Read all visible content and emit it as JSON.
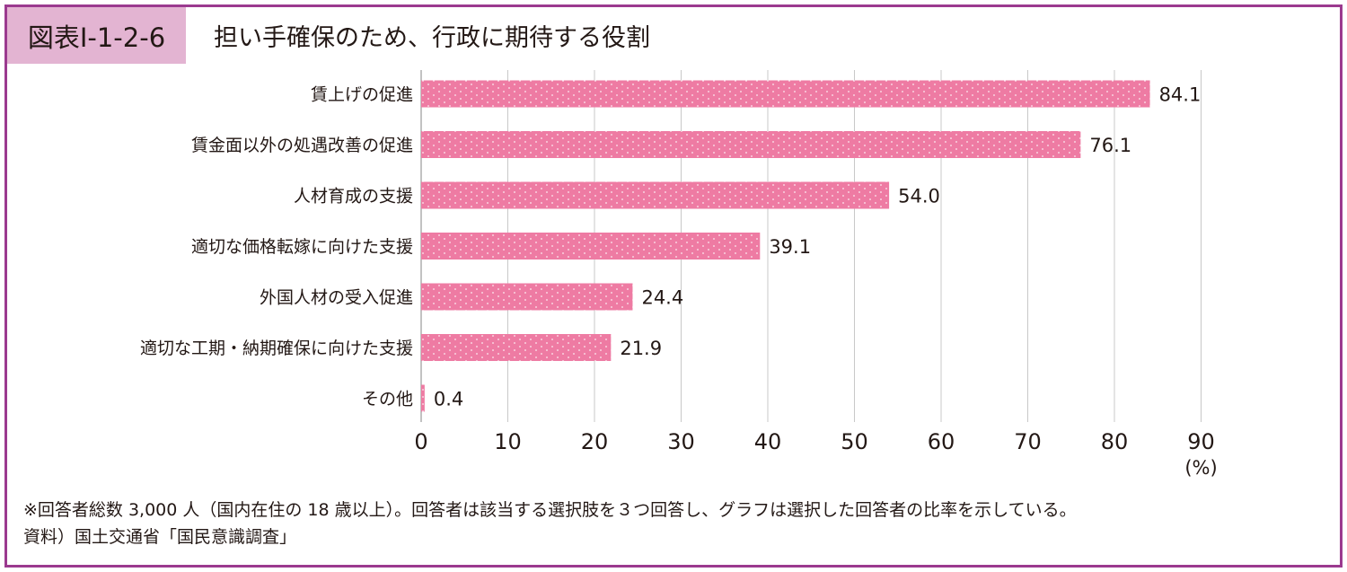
{
  "figure": {
    "badge": "図表Ⅰ-1-2-6",
    "title": "担い手確保のため、行政に期待する役割",
    "note": "※回答者総数 3,000 人（国内在住の 18 歳以上）。回答者は該当する選択肢を３つ回答し、グラフは選択した回答者の比率を示している。",
    "source": "資料）国土交通省「国民意識調査」"
  },
  "colors": {
    "border": "#9b3a8f",
    "badge": "#e3b4d2",
    "bar": "#ee7ba3",
    "grid": "#c8c8c8"
  },
  "chart_data": {
    "type": "bar",
    "orientation": "horizontal",
    "categories": [
      "賃上げの促進",
      "賃金面以外の処遇改善の促進",
      "人材育成の支援",
      "適切な価格転嫁に向けた支援",
      "外国人材の受入促進",
      "適切な工期・納期確保に向けた支援",
      "その他"
    ],
    "values": [
      84.1,
      76.1,
      54.0,
      39.1,
      24.4,
      21.9,
      0.4
    ],
    "value_labels": [
      "84.1",
      "76.1",
      "54.0",
      "39.1",
      "24.4",
      "21.9",
      "0.4"
    ],
    "x_ticks": [
      "0",
      "10",
      "20",
      "30",
      "40",
      "50",
      "60",
      "70",
      "80",
      "90"
    ],
    "xlim": [
      0,
      90
    ],
    "unit": "(%)",
    "grid": true
  }
}
